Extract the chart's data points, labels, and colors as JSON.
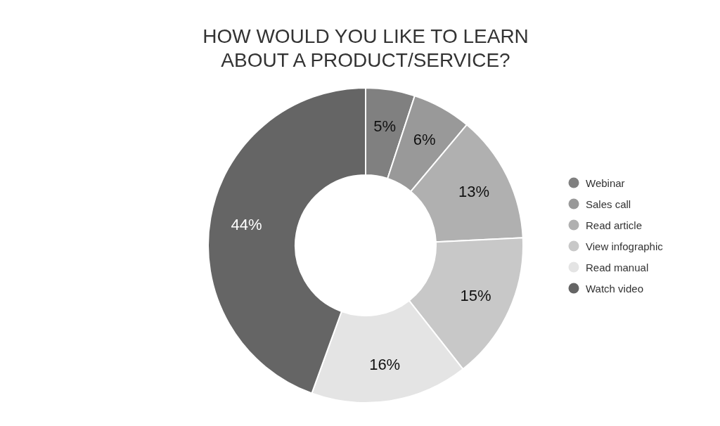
{
  "chart_data": {
    "type": "donut",
    "title": "HOW WOULD YOU LIKE TO LEARN ABOUT A PRODUCT/SERVICE?",
    "categories": [
      "Webinar",
      "Sales call",
      "Read article",
      "View infographic",
      "Read manual",
      "Watch video"
    ],
    "values": [
      5,
      6,
      13,
      15,
      16,
      44
    ],
    "colors": [
      "#808080",
      "#999999",
      "#b0b0b0",
      "#c8c8c8",
      "#e4e4e4",
      "#656565"
    ],
    "value_labels": [
      "5%",
      "6%",
      "13%",
      "15%",
      "16%",
      "44%"
    ],
    "legend": "right"
  }
}
